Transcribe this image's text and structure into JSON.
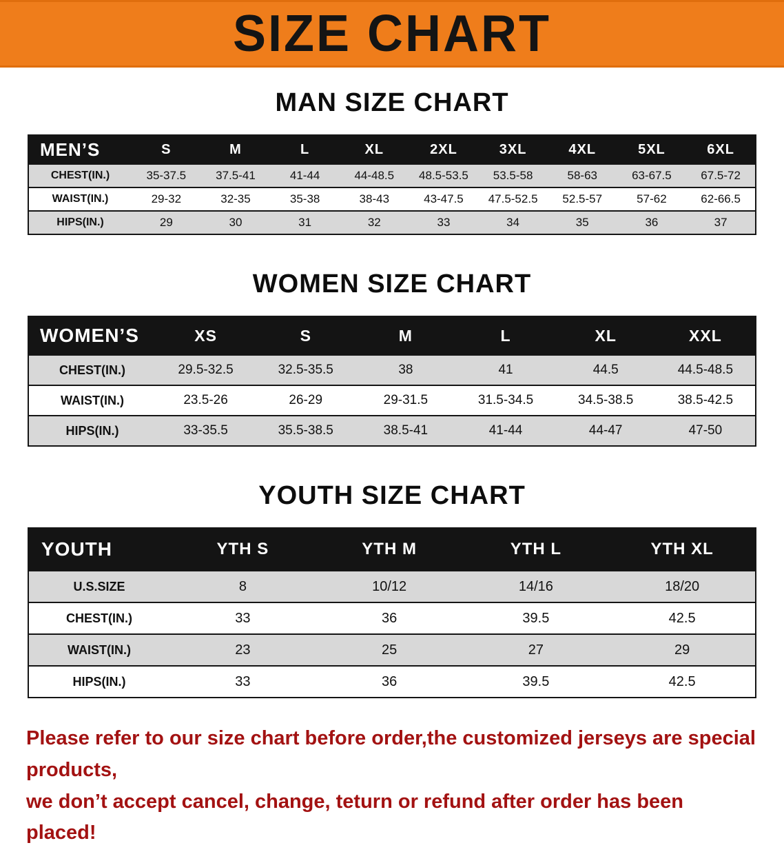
{
  "banner": {
    "title": "SIZE CHART"
  },
  "colors": {
    "banner_bg": "#ef7d1b",
    "header_bg": "#141414",
    "header_text": "#ffffff",
    "shaded_row": "#d8d8d8",
    "disclaimer_text": "#a31212",
    "body_text": "#111111"
  },
  "sections": [
    {
      "id": "men",
      "heading": "MAN SIZE CHART",
      "table": {
        "header": [
          "MEN’S",
          "S",
          "M",
          "L",
          "XL",
          "2XL",
          "3XL",
          "4XL",
          "5XL",
          "6XL"
        ],
        "rows": [
          [
            "CHEST(IN.)",
            "35-37.5",
            "37.5-41",
            "41-44",
            "44-48.5",
            "48.5-53.5",
            "53.5-58",
            "58-63",
            "63-67.5",
            "67.5-72"
          ],
          [
            "WAIST(IN.)",
            "29-32",
            "32-35",
            "35-38",
            "38-43",
            "43-47.5",
            "47.5-52.5",
            "52.5-57",
            "57-62",
            "62-66.5"
          ],
          [
            "HIPS(IN.)",
            "29",
            "30",
            "31",
            "32",
            "33",
            "34",
            "35",
            "36",
            "37"
          ]
        ]
      }
    },
    {
      "id": "women",
      "heading": "WOMEN SIZE CHART",
      "table": {
        "header": [
          "WOMEN’S",
          "XS",
          "S",
          "M",
          "L",
          "XL",
          "XXL"
        ],
        "rows": [
          [
            "CHEST(IN.)",
            "29.5-32.5",
            "32.5-35.5",
            "38",
            "41",
            "44.5",
            "44.5-48.5"
          ],
          [
            "WAIST(IN.)",
            "23.5-26",
            "26-29",
            "29-31.5",
            "31.5-34.5",
            "34.5-38.5",
            "38.5-42.5"
          ],
          [
            "HIPS(IN.)",
            "33-35.5",
            "35.5-38.5",
            "38.5-41",
            "41-44",
            "44-47",
            "47-50"
          ]
        ]
      }
    },
    {
      "id": "youth",
      "heading": "YOUTH SIZE CHART",
      "table": {
        "header": [
          "YOUTH",
          "YTH S",
          "YTH M",
          "YTH L",
          "YTH XL"
        ],
        "rows": [
          [
            "U.S.SIZE",
            "8",
            "10/12",
            "14/16",
            "18/20"
          ],
          [
            "CHEST(IN.)",
            "33",
            "36",
            "39.5",
            "42.5"
          ],
          [
            "WAIST(IN.)",
            "23",
            "25",
            "27",
            "29"
          ],
          [
            "HIPS(IN.)",
            "33",
            "36",
            "39.5",
            "42.5"
          ]
        ]
      }
    }
  ],
  "disclaimer": {
    "line1": "Please refer to our size chart before order,the customized jerseys are special products,",
    "line2": "we don’t accept cancel, change, teturn or refund after order has been placed!"
  }
}
